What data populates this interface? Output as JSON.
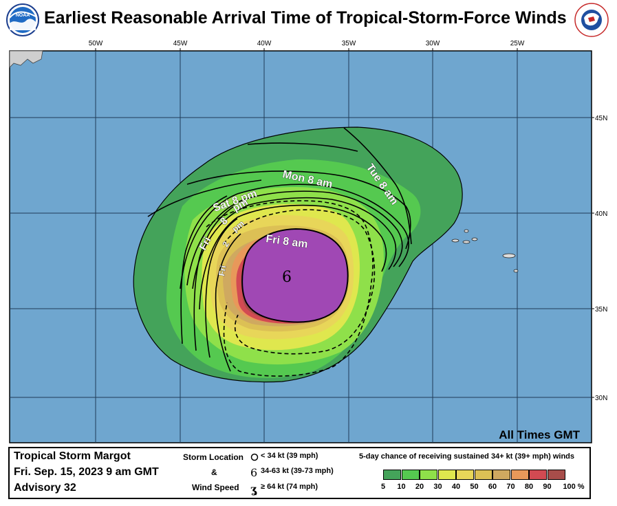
{
  "title": "Earliest Reasonable Arrival Time of Tropical-Storm-Force Winds",
  "logos": {
    "left": "NOAA",
    "right": "NATIONAL WEATHER SERVICE"
  },
  "map": {
    "lon_labels": [
      "50W",
      "45W",
      "40W",
      "35W",
      "30W",
      "25W"
    ],
    "lat_labels": [
      "45N",
      "40N",
      "35N",
      "30N"
    ],
    "note": "All Times GMT",
    "contour_labels": {
      "fri8am": "Fri   8   am",
      "fri2pm_a": "Fri",
      "fri2pm_b": "2",
      "fri2pm_c": "pm",
      "fri8pm_a": "Fri",
      "fri8pm_b": "8",
      "fri8pm_c": "pm",
      "sat8pm": "Sat   8   pm",
      "mon8am": "Mon    8    am",
      "tue8am": "Tue    8    am"
    },
    "storm_symbol": "6",
    "colors": {
      "ocean": "#6fa6cf",
      "c5": "#44a35a",
      "c10": "#55c950",
      "c20": "#8fe04a",
      "c30": "#dfe74e",
      "c40": "#e8d659",
      "c50": "#dcc055",
      "c60": "#cfa960",
      "c70": "#e8985a",
      "c80": "#d24a52",
      "c90": "#a74d4a",
      "c100": "#a048b4"
    }
  },
  "legend": {
    "storm_name": "Tropical Storm Margot",
    "date": "Fri. Sep. 15, 2023  9 am GMT",
    "advisory": "Advisory 32",
    "storm_location": "Storm Location",
    "amp": "&",
    "wind_speed": "Wind Speed",
    "key1": "< 34 kt (39 mph)",
    "key2": "34-63 kt (39-73 mph)",
    "key3": "≥ 64 kt (74 mph)",
    "scale_title": "5-day chance of receiving sustained 34+ kt (39+ mph) winds",
    "scale": [
      {
        "label": "5",
        "color": "#44a35a"
      },
      {
        "label": "10",
        "color": "#55c950"
      },
      {
        "label": "20",
        "color": "#8fe04a"
      },
      {
        "label": "30",
        "color": "#dfe74e"
      },
      {
        "label": "40",
        "color": "#e8d659"
      },
      {
        "label": "50",
        "color": "#dcc055"
      },
      {
        "label": "60",
        "color": "#cfa960"
      },
      {
        "label": "70",
        "color": "#e8985a"
      },
      {
        "label": "80",
        "color": "#d24a52"
      },
      {
        "label": "90",
        "color": "#a74d4a"
      },
      {
        "label": "100 %",
        "color": "#a048b4"
      }
    ]
  }
}
